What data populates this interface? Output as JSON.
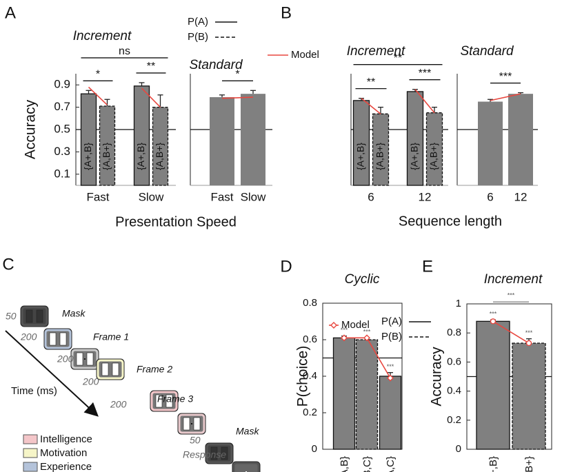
{
  "chart_data": [
    {
      "type": "bar",
      "panel_label": "A",
      "title": "Increment",
      "ylabel": "Accuracy",
      "xlabel": "Presentation Speed",
      "categories": [
        "Fast",
        "Slow"
      ],
      "ylim": [
        0,
        1
      ],
      "yticks": [
        0.1,
        0.3,
        0.5,
        0.7,
        0.9
      ],
      "refline": 0.5,
      "color": "#808080",
      "model_color": "#e8473f",
      "series": [
        {
          "name": "{A+,B}",
          "style": "solid",
          "values": [
            0.82,
            0.89
          ],
          "errors": [
            0.03,
            0.03
          ],
          "model": [
            0.88,
            0.87
          ]
        },
        {
          "name": "{A,B+}",
          "style": "dashed",
          "values": [
            0.71,
            0.7
          ],
          "errors": [
            0.06,
            0.11
          ],
          "model": [
            0.72,
            0.7
          ]
        }
      ],
      "significance": [
        "*",
        "**",
        "ns"
      ],
      "legend": [
        {
          "name": "P(A)",
          "style": "solid"
        },
        {
          "name": "P(B)",
          "style": "dashed"
        }
      ],
      "model_name": "Model"
    },
    {
      "type": "bar",
      "title": "Standard",
      "categories": [
        "Fast",
        "Slow"
      ],
      "ylim": [
        0,
        1
      ],
      "refline": 0.5,
      "color": "#808080",
      "model_color": "#e8473f",
      "series": [
        {
          "values": [
            0.79,
            0.82
          ],
          "errors": [
            0.02,
            0.03
          ],
          "model": [
            0.78,
            0.79
          ]
        }
      ],
      "significance": [
        "*"
      ]
    },
    {
      "type": "bar",
      "panel_label": "B",
      "title": "Increment",
      "xlabel": "Sequence length",
      "categories": [
        "6",
        "12"
      ],
      "ylim": [
        0,
        1
      ],
      "refline": 0.5,
      "color": "#808080",
      "model_color": "#e8473f",
      "series": [
        {
          "name": "{A+,B}",
          "style": "solid",
          "values": [
            0.76,
            0.84
          ],
          "errors": [
            0.02,
            0.02
          ],
          "model": [
            0.78,
            0.86
          ]
        },
        {
          "name": "{A,B+}",
          "style": "dashed",
          "values": [
            0.64,
            0.65
          ],
          "errors": [
            0.06,
            0.05
          ],
          "model": [
            0.64,
            0.65
          ]
        }
      ],
      "significance": [
        "**",
        "***",
        "**"
      ]
    },
    {
      "type": "bar",
      "title": "Standard",
      "categories": [
        "6",
        "12"
      ],
      "ylim": [
        0,
        1
      ],
      "refline": 0.5,
      "color": "#808080",
      "model_color": "#e8473f",
      "series": [
        {
          "values": [
            0.75,
            0.82
          ],
          "errors": [
            0.02,
            0.01
          ],
          "model": [
            0.76,
            0.82
          ]
        }
      ],
      "significance": [
        "***"
      ]
    },
    {
      "type": "bar",
      "panel_label": "D",
      "title": "Cyclic",
      "ylabel": "P(choice)",
      "categories": [
        "{A,B}",
        "{B,C}",
        "{A,C}"
      ],
      "ylim": [
        0,
        0.8
      ],
      "yticks": [
        0,
        0.2,
        0.4,
        0.6,
        0.8
      ],
      "refline": 0.5,
      "box": true,
      "color": "#808080",
      "model_color": "#e8473f",
      "model_marker": "diamond",
      "series": [
        {
          "bar_styles": [
            "solid",
            "dashed",
            "solid"
          ],
          "values": [
            0.61,
            0.6,
            0.4
          ],
          "errors": [
            0.01,
            0.01,
            0.02
          ],
          "model": [
            0.61,
            0.61,
            0.39
          ],
          "bar_annotations": [
            "***",
            "***",
            "***"
          ]
        }
      ],
      "legend": [
        {
          "name": "P(A)",
          "style": "solid"
        },
        {
          "name": "P(B)",
          "style": "dashed"
        }
      ],
      "model_name": "Model"
    },
    {
      "type": "bar",
      "panel_label": "E",
      "title": "Increment",
      "ylabel": "Accuracy",
      "categories": [
        "{A+,B}",
        "{A,B+}"
      ],
      "ylim": [
        0,
        1
      ],
      "yticks": [
        0,
        0.2,
        0.4,
        0.6,
        0.8,
        1
      ],
      "refline": 0.5,
      "box": true,
      "color": "#808080",
      "model_color": "#e8473f",
      "model_marker": "circle",
      "series": [
        {
          "bar_styles": [
            "solid",
            "dashed"
          ],
          "values": [
            0.88,
            0.73
          ],
          "errors": [
            0.01,
            0.03
          ],
          "model": [
            0.88,
            0.73
          ],
          "bar_annotations": [
            "***",
            "***"
          ]
        }
      ],
      "significance": [
        "***"
      ]
    }
  ],
  "diagram": {
    "panel_label": "C",
    "durations": [
      "50",
      "200",
      "200",
      "200",
      "200",
      "50",
      "Response"
    ],
    "labels": [
      "Mask",
      "Frame 1",
      "Frame 2",
      "Frame 3",
      "Mask"
    ],
    "axis_label": "Time (ms)",
    "legend": [
      {
        "name": "Intelligence",
        "color": "#f4c6c9"
      },
      {
        "name": "Motivation",
        "color": "#f6f5c8"
      },
      {
        "name": "Experience",
        "color": "#b4c3da"
      }
    ]
  }
}
